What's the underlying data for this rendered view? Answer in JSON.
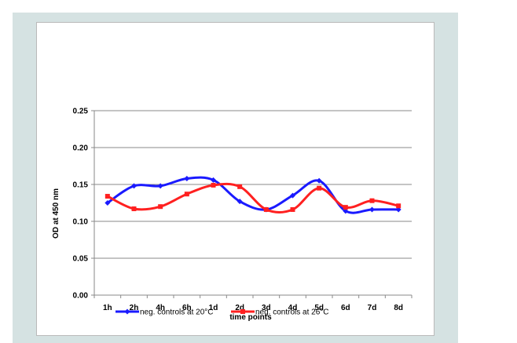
{
  "chart_data": {
    "type": "line",
    "title": "",
    "xlabel": "time points",
    "ylabel": "OD at 450 nm",
    "categories": [
      "1h",
      "2h",
      "4h",
      "6h",
      "1d",
      "2d",
      "3d",
      "4d",
      "5d",
      "6d",
      "7d",
      "8d"
    ],
    "ylim": [
      0,
      0.25
    ],
    "yticks": [
      "0.00",
      "0.05",
      "0.10",
      "0.15",
      "0.20",
      "0.25"
    ],
    "grid": true,
    "legend": "bottom",
    "series": [
      {
        "name": "neg. controls at 20°C",
        "color": "#1a1aff",
        "marker": "diamond",
        "values": [
          0.125,
          0.148,
          0.148,
          0.158,
          0.156,
          0.127,
          0.116,
          0.135,
          0.155,
          0.114,
          0.116,
          0.116
        ]
      },
      {
        "name": "neg. controls at 26°C",
        "color": "#ff2020",
        "marker": "square",
        "values": [
          0.134,
          0.117,
          0.12,
          0.137,
          0.149,
          0.147,
          0.116,
          0.116,
          0.145,
          0.119,
          0.128,
          0.121
        ]
      }
    ]
  }
}
